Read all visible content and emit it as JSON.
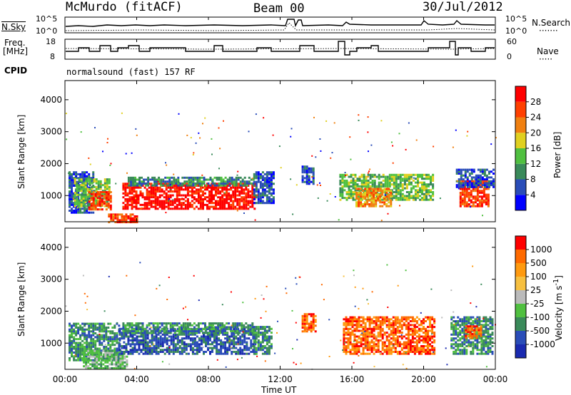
{
  "header": {
    "title": "McMurdo (fitACF)",
    "beam": "Beam 00",
    "date": "30/Jul/2012"
  },
  "noise_panel": {
    "left_label": "N.Sky",
    "right_label": "N.Search",
    "y_ticks": [
      "10^5",
      "10^0"
    ]
  },
  "freq_panel": {
    "left_label_1": "Freq.",
    "left_label_2": "[MHz]",
    "left_ticks": [
      "18",
      "8"
    ],
    "right_label": "Nave",
    "right_ticks": [
      "60",
      "0"
    ]
  },
  "cpid": {
    "label": "CPID",
    "program": "normalsound (fast) 157 RF"
  },
  "colors": {
    "power": [
      "#0000ff",
      "#2a4db8",
      "#3a8a5a",
      "#50c040",
      "#e0d020",
      "#f08010",
      "#ff4000",
      "#ff0000"
    ],
    "velocity": [
      "#ff0000",
      "#ff6a00",
      "#ff9a10",
      "#f7c040",
      "#bbbbbb",
      "#50c040",
      "#3a8a5a",
      "#2a4db8",
      "#1a2ab0"
    ]
  },
  "chart_data": [
    {
      "type": "heatmap",
      "name": "power",
      "ylabel": "Slant Range [km]",
      "y_ticks": [
        1000,
        2000,
        3000,
        4000
      ],
      "ylim": [
        180,
        4600
      ],
      "colorbar_label": "Power [dB]",
      "colorbar_ticks": [
        "4",
        "8",
        "12",
        "16",
        "20",
        "24",
        "28"
      ],
      "colorbar_range": [
        0,
        32
      ],
      "regions": [
        {
          "x0": 0.2,
          "x1": 1.6,
          "y0": 500,
          "y1": 1800,
          "level": 1
        },
        {
          "x0": 0.5,
          "x1": 2.5,
          "y0": 700,
          "y1": 1550,
          "level": 3
        },
        {
          "x0": 1.3,
          "x1": 2.6,
          "y0": 600,
          "y1": 1200,
          "level": 6
        },
        {
          "x0": 2.4,
          "x1": 4.0,
          "y0": 200,
          "y1": 500,
          "level": 6
        },
        {
          "x0": 3.2,
          "x1": 10.6,
          "y0": 620,
          "y1": 1450,
          "level": 7
        },
        {
          "x0": 3.5,
          "x1": 10.5,
          "y0": 1350,
          "y1": 1650,
          "level": 2
        },
        {
          "x0": 10.5,
          "x1": 11.6,
          "y0": 800,
          "y1": 1800,
          "level": 1
        },
        {
          "x0": 13.2,
          "x1": 13.8,
          "y0": 1400,
          "y1": 2000,
          "level": 1
        },
        {
          "x0": 15.3,
          "x1": 20.5,
          "y0": 900,
          "y1": 1700,
          "level": 3
        },
        {
          "x0": 16.2,
          "x1": 18.2,
          "y0": 700,
          "y1": 1300,
          "level": 5
        },
        {
          "x0": 22.0,
          "x1": 23.6,
          "y0": 700,
          "y1": 1500,
          "level": 6
        },
        {
          "x0": 21.8,
          "x1": 23.9,
          "y0": 1300,
          "y1": 1900,
          "level": 1
        }
      ]
    },
    {
      "type": "heatmap",
      "name": "velocity",
      "ylabel": "Slant Range [km]",
      "y_ticks": [
        1000,
        2000,
        3000,
        4000
      ],
      "ylim": [
        180,
        4600
      ],
      "colorbar_label": "Velocity [m s-1]",
      "colorbar_ticks": [
        "1000",
        "500",
        "100",
        "25",
        "-25",
        "-100",
        "-500",
        "-1000"
      ],
      "xlabel": "Time UT",
      "x_ticks": [
        "00:00",
        "04:00",
        "08:00",
        "12:00",
        "16:00",
        "20:00",
        "00:00"
      ],
      "xlim": [
        0,
        24
      ],
      "regions": [
        {
          "x0": 0.2,
          "x1": 3.0,
          "y0": 500,
          "y1": 1700,
          "level": 6
        },
        {
          "x0": 1.0,
          "x1": 3.5,
          "y0": 250,
          "y1": 800,
          "level": 5
        },
        {
          "x0": 3.0,
          "x1": 10.6,
          "y0": 700,
          "y1": 1500,
          "level": 7
        },
        {
          "x0": 3.2,
          "x1": 10.5,
          "y0": 1350,
          "y1": 1700,
          "level": 6
        },
        {
          "x0": 10.5,
          "x1": 11.5,
          "y0": 700,
          "y1": 1600,
          "level": 6
        },
        {
          "x0": 13.2,
          "x1": 14.0,
          "y0": 1400,
          "y1": 2000,
          "level": 1
        },
        {
          "x0": 15.5,
          "x1": 20.6,
          "y0": 700,
          "y1": 1900,
          "level": 1
        },
        {
          "x0": 21.5,
          "x1": 23.9,
          "y0": 700,
          "y1": 1900,
          "level": 6
        },
        {
          "x0": 22.3,
          "x1": 23.2,
          "y0": 1200,
          "y1": 1600,
          "level": 1
        }
      ]
    }
  ]
}
